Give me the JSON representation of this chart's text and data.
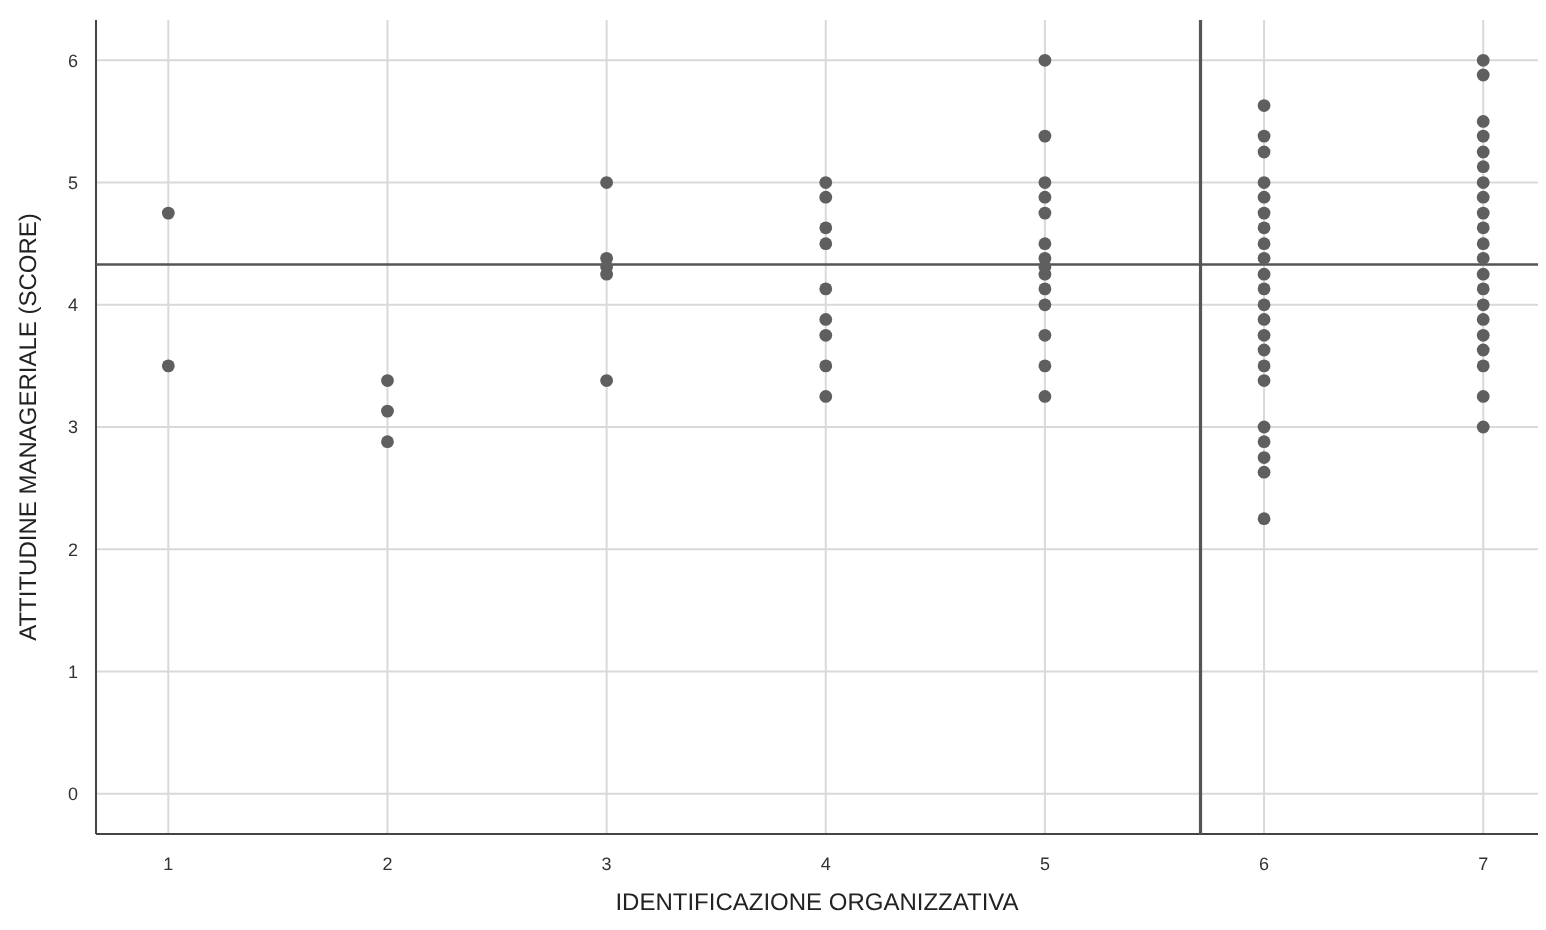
{
  "chart_data": {
    "type": "scatter",
    "xlabel": "IDENTIFICAZIONE ORGANIZZATIVA",
    "ylabel": "ATTITUDINE MANAGERIALE (SCORE)",
    "xlim": [
      0.67,
      7.25
    ],
    "ylim": [
      -0.33,
      6.33
    ],
    "xticks": [
      1,
      2,
      3,
      4,
      5,
      6,
      7
    ],
    "yticks": [
      0,
      1,
      2,
      3,
      4,
      5,
      6
    ],
    "grid": true,
    "marker": "circle",
    "series": [
      {
        "color": "#5f5f5f",
        "x": [
          1,
          1,
          2,
          2,
          2,
          3,
          3,
          3,
          3,
          3,
          4,
          4,
          4,
          4,
          4,
          4,
          4,
          4,
          4,
          5,
          5,
          5,
          5,
          5,
          5,
          5,
          5,
          5,
          5,
          5,
          5,
          5,
          5,
          6,
          6,
          6,
          6,
          6,
          6,
          6,
          6,
          6,
          6,
          6,
          6,
          6,
          6,
          6,
          6,
          6,
          6,
          6,
          6,
          6,
          6,
          7,
          7,
          7,
          7,
          7,
          7,
          7,
          7,
          7,
          7,
          7,
          7,
          7,
          7,
          7,
          7,
          7,
          7,
          7,
          7,
          7
        ],
        "values": [
          4.75,
          3.5,
          3.38,
          3.13,
          2.88,
          5,
          4.38,
          4.31,
          4.25,
          3.38,
          5,
          4.88,
          4.63,
          4.5,
          4.13,
          3.88,
          3.75,
          3.5,
          3.25,
          6,
          5.38,
          5,
          4.88,
          4.75,
          4.5,
          4.38,
          4.31,
          4.25,
          4.13,
          4,
          3.75,
          3.5,
          3.25,
          5.63,
          5.38,
          5.25,
          5,
          4.88,
          4.75,
          4.63,
          4.5,
          4.38,
          4.25,
          4.13,
          4,
          3.88,
          3.75,
          3.63,
          3.5,
          3.38,
          3,
          2.88,
          2.75,
          2.63,
          2.25,
          6,
          5.88,
          5.5,
          5.38,
          5.25,
          5.13,
          5,
          4.88,
          4.75,
          4.63,
          4.5,
          4.38,
          4.25,
          4.13,
          4,
          3.88,
          3.75,
          3.63,
          3.5,
          3.25,
          3
        ]
      }
    ],
    "ref_lines": [
      {
        "axis": "y",
        "value": 4.33,
        "color": "#555555"
      },
      {
        "axis": "x",
        "value": 5.71,
        "color": "#555555"
      }
    ]
  }
}
